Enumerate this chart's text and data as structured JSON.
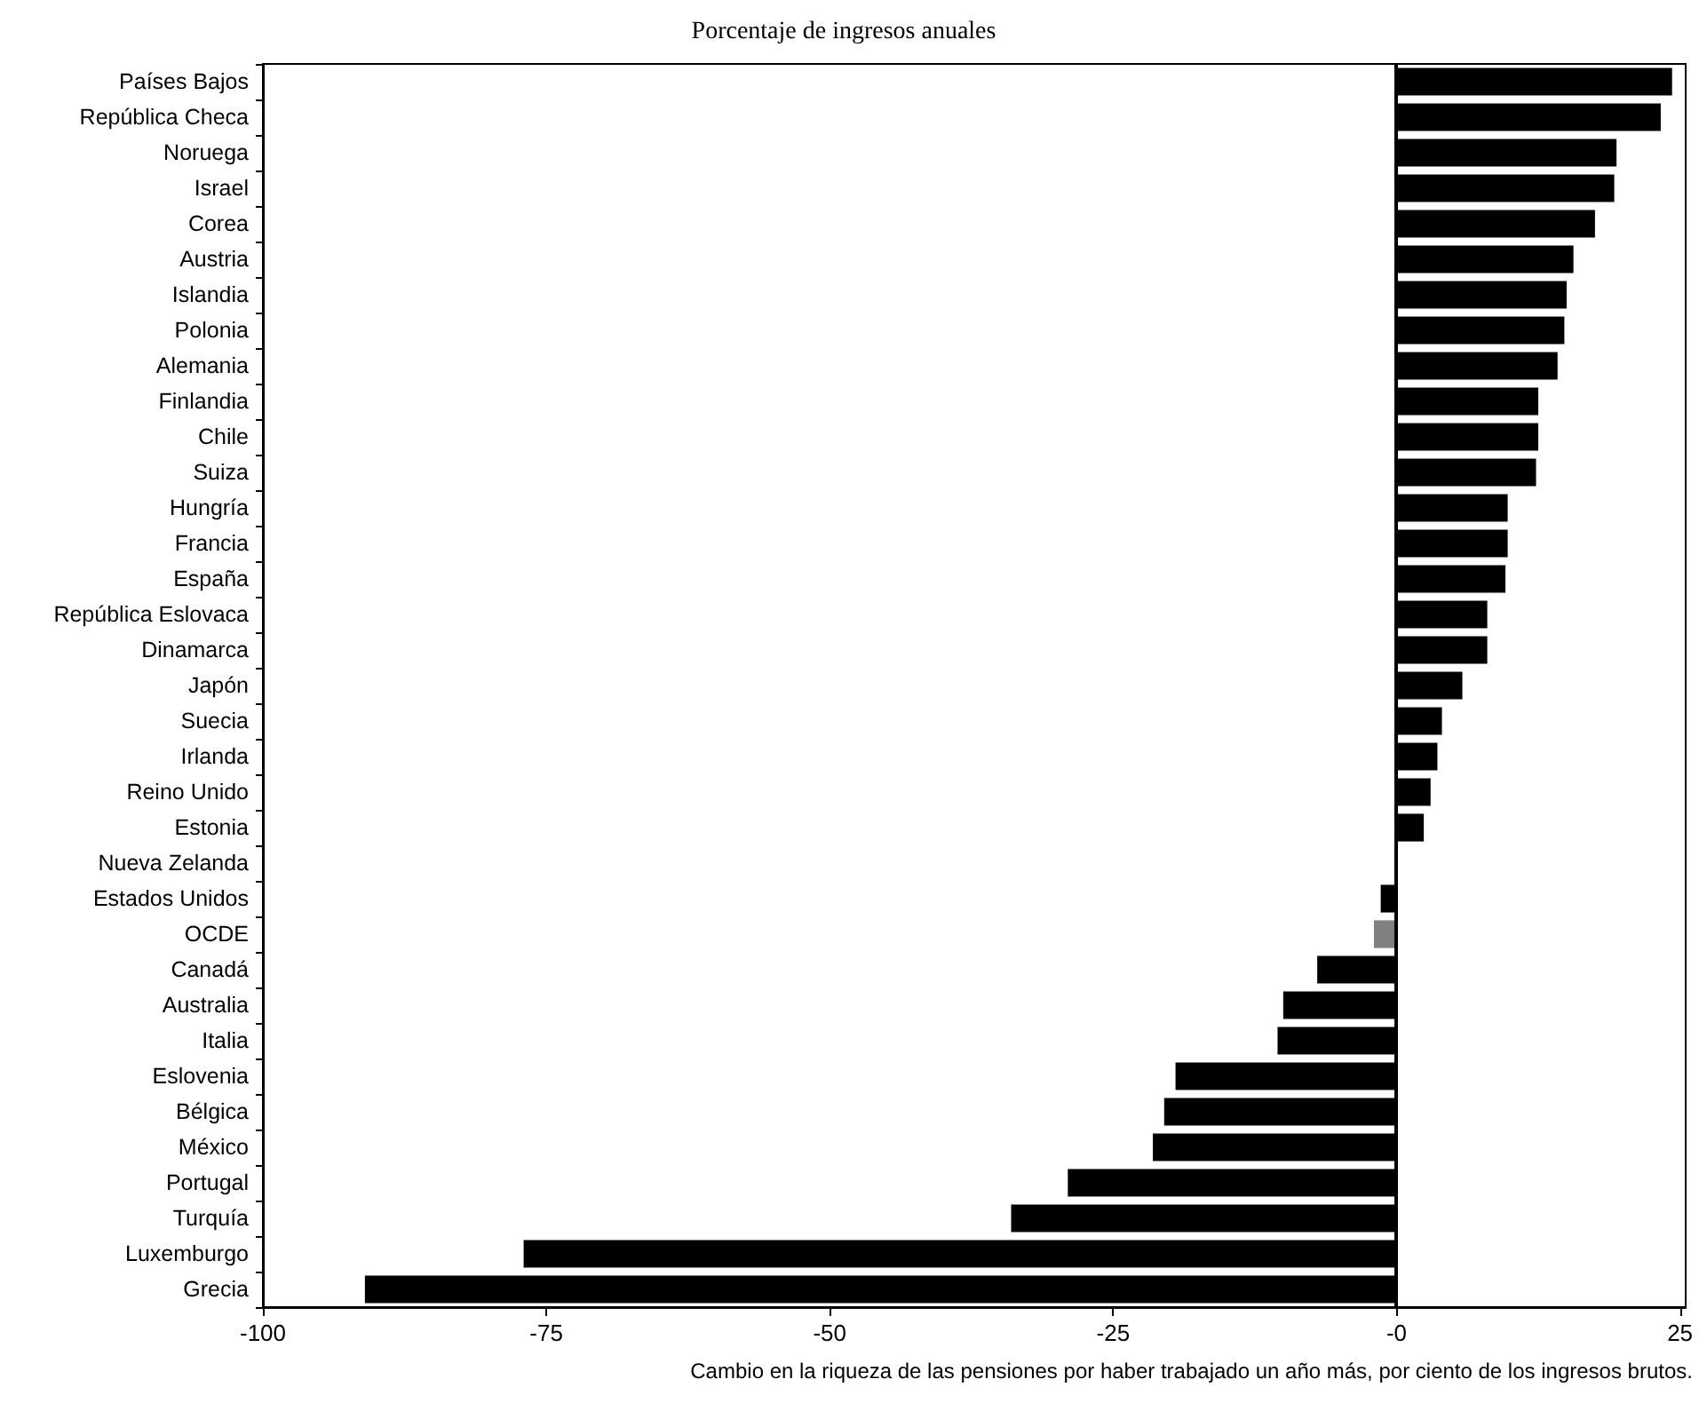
{
  "chart_data": {
    "type": "bar",
    "orientation": "horizontal",
    "title": "Porcentaje de ingresos anuales",
    "xlabel": "Cambio en la riqueza de las pensiones por haber trabajado un año más, por ciento de los ingresos brutos.",
    "categories": [
      "Países Bajos",
      "República Checa",
      "Noruega",
      "Israel",
      "Corea",
      "Austria",
      "Islandia",
      "Polonia",
      "Alemania",
      "Finlandia",
      "Chile",
      "Suiza",
      "Hungría",
      "Francia",
      "España",
      "República Eslovaca",
      "Dinamarca",
      "Japón",
      "Suecia",
      "Irlanda",
      "Reino Unido",
      "Estonia",
      "Nueva Zelanda",
      "Estados Unidos",
      "OCDE",
      "Canadá",
      "Australia",
      "Italia",
      "Eslovenia",
      "Bélgica",
      "México",
      "Portugal",
      "Turquía",
      "Luxemburgo",
      "Grecia"
    ],
    "values": [
      24.3,
      23.3,
      19.4,
      19.2,
      17.5,
      15.6,
      15,
      14.8,
      14.2,
      12.5,
      12.5,
      12.3,
      9.8,
      9.8,
      9.6,
      8,
      8,
      5.8,
      4,
      3.6,
      3,
      2.4,
      0,
      -1.4,
      -2,
      -7,
      -10,
      -10.5,
      -19.5,
      -20.5,
      -21.5,
      -29,
      -34,
      -77,
      -91
    ],
    "colors": [
      "#000000",
      "#000000",
      "#000000",
      "#000000",
      "#000000",
      "#000000",
      "#000000",
      "#000000",
      "#000000",
      "#000000",
      "#000000",
      "#000000",
      "#000000",
      "#000000",
      "#000000",
      "#000000",
      "#000000",
      "#000000",
      "#000000",
      "#000000",
      "#000000",
      "#000000",
      "#000000",
      "#000000",
      "#808080",
      "#000000",
      "#000000",
      "#000000",
      "#000000",
      "#000000",
      "#000000",
      "#000000",
      "#000000",
      "#000000",
      "#000000"
    ],
    "xlim": [
      -100,
      25.5
    ],
    "xticks": [
      -100,
      -75,
      -50,
      -25,
      {
        "value": 0,
        "label": "-0"
      },
      25
    ],
    "ref_lines": [
      {
        "axis": "x",
        "value": 0,
        "color": "#000000"
      }
    ],
    "grid": false
  }
}
